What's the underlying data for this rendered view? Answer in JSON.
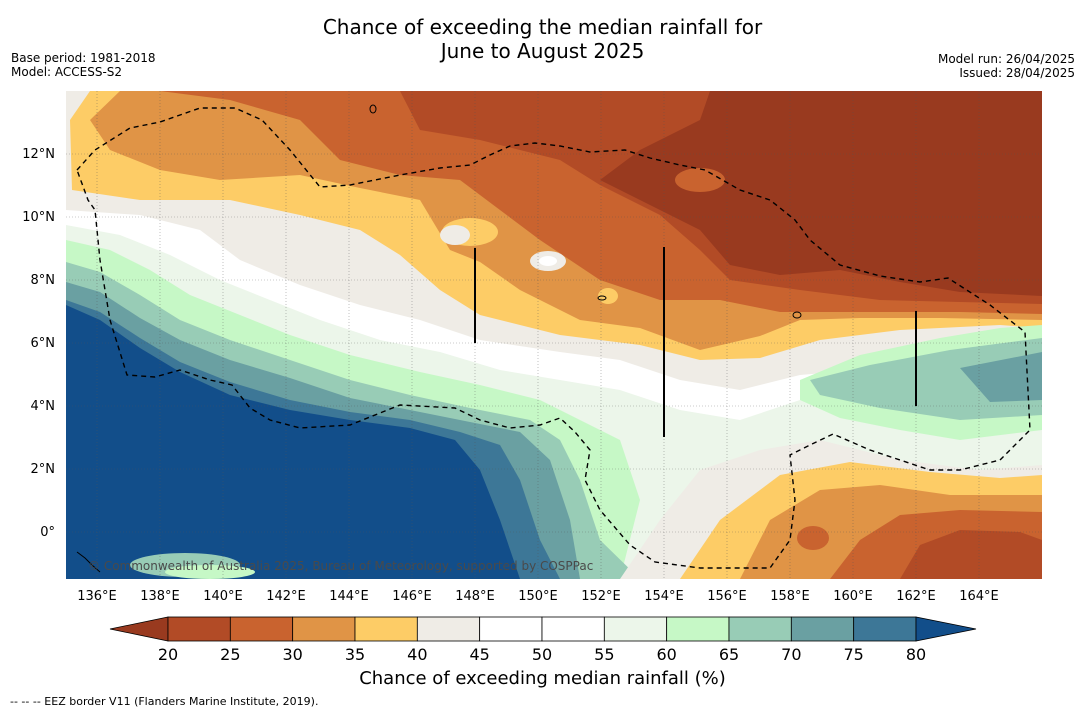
{
  "title_line1": "Chance of exceeding the median rainfall for",
  "title_line2": "June to August 2025",
  "base_period": "Base period: 1981-2018",
  "model": "Model: ACCESS-S2",
  "model_run": "Model run: 26/04/2025",
  "issued": "Issued: 28/04/2025",
  "credit": "© Commonwealth of Australia 2025, Bureau of Meteorology, supported by COSPPac",
  "colorbar_title": "Chance of exceeding median rainfall (%)",
  "footer": "--  --  -- EEZ border V11 (Flanders Marine Institute, 2019).",
  "lon_labels": [
    "136°E",
    "138°E",
    "140°E",
    "142°E",
    "144°E",
    "146°E",
    "148°E",
    "150°E",
    "152°E",
    "154°E",
    "156°E",
    "158°E",
    "160°E",
    "162°E",
    "164°E"
  ],
  "lat_labels": [
    "12°N",
    "10°N",
    "8°N",
    "6°N",
    "4°N",
    "2°N",
    "0°"
  ],
  "colorbar": {
    "ticks": [
      "20",
      "25",
      "30",
      "35",
      "40",
      "45",
      "50",
      "55",
      "60",
      "65",
      "70",
      "75",
      "80"
    ],
    "colors": [
      "#b24b26",
      "#c9632f",
      "#e09446",
      "#fdcc66",
      "#efece6",
      "#ffffff",
      "#ffffff",
      "#ecf6ea",
      "#c6f8c6",
      "#98ccb6",
      "#6aa0a2",
      "#3d7797"
    ],
    "under_color": "#993a1f",
    "over_color": "#124e8a"
  },
  "colors": {
    "lt20": "#993a1f",
    "c20": "#b24b26",
    "c25": "#c9632f",
    "c30": "#e09446",
    "c35": "#fdcc66",
    "c40": "#efece6",
    "c45": "#ffffff",
    "c55": "#ecf6ea",
    "c60": "#c6f8c6",
    "c65": "#98ccb6",
    "c70": "#6aa0a2",
    "c75": "#3d7797",
    "gt80": "#124e8a"
  }
}
